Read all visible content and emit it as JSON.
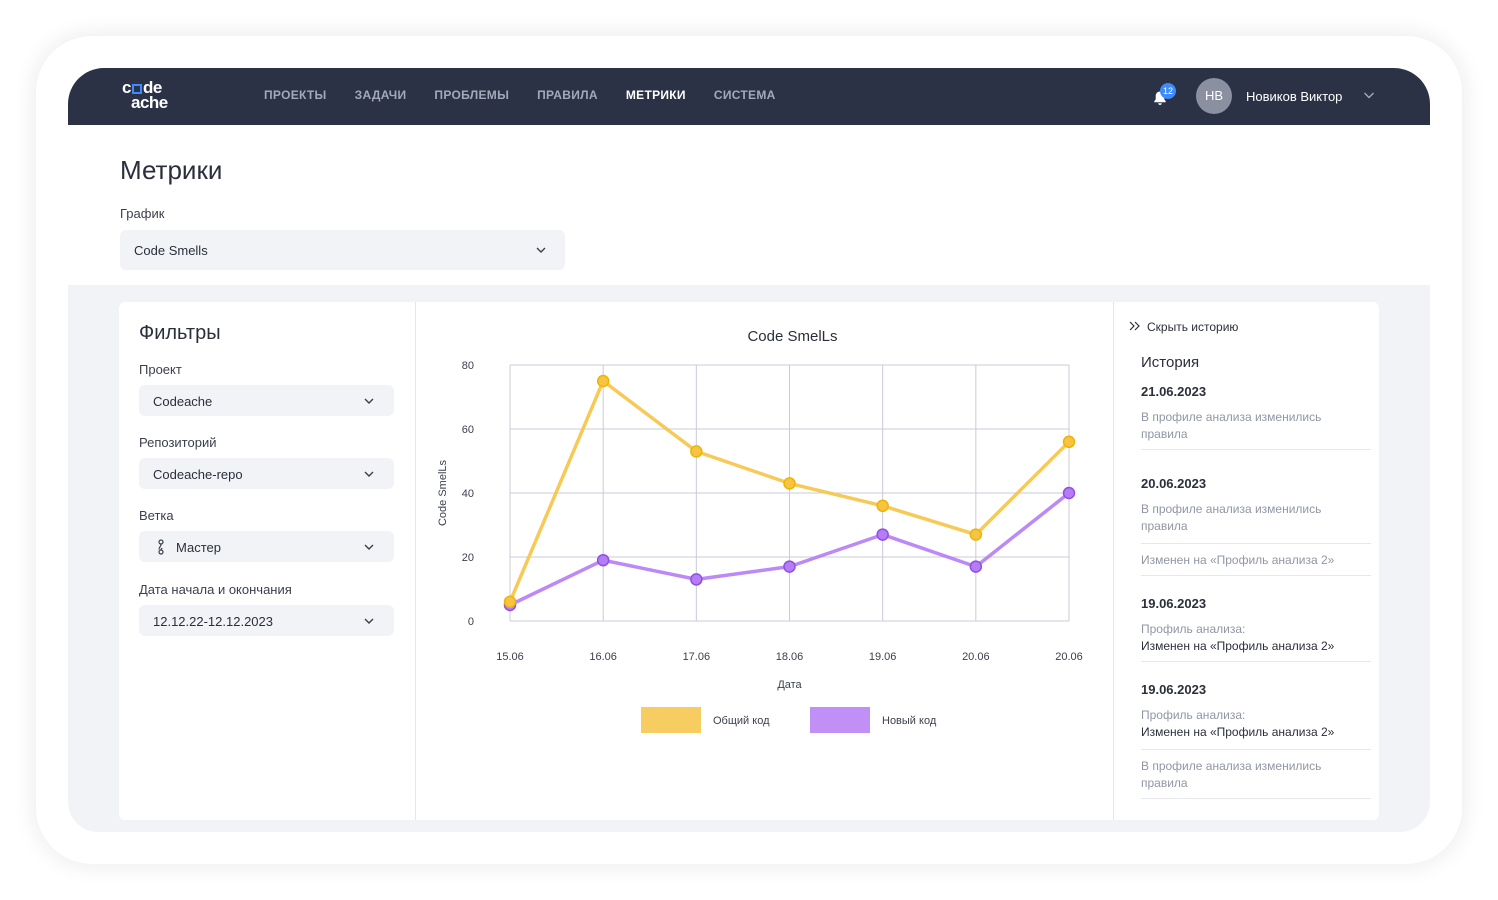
{
  "brand": {
    "logo_line1_a": "c",
    "logo_line1_b": "de",
    "logo_line2": "ache"
  },
  "nav": {
    "items": [
      {
        "label": "ПРОЕКТЫ",
        "active": false
      },
      {
        "label": "ЗАДАЧИ",
        "active": false
      },
      {
        "label": "ПРОБЛЕМЫ",
        "active": false
      },
      {
        "label": "ПРАВИЛА",
        "active": false
      },
      {
        "label": "МЕТРИКИ",
        "active": true
      },
      {
        "label": "СИСТЕМА",
        "active": false
      }
    ]
  },
  "user": {
    "notifications": "12",
    "initials": "НВ",
    "name": "Новиков Виктор"
  },
  "page": {
    "title": "Метрики",
    "graph_label": "График",
    "graph_value": "Code Smells"
  },
  "filters": {
    "title": "Фильтры",
    "project_label": "Проект",
    "project_value": "Codeache",
    "repo_label": "Репозиторий",
    "repo_value": "Codeache-repo",
    "branch_label": "Ветка",
    "branch_value": "Мастер",
    "dates_label": "Дата начала и  окончания",
    "dates_value": "12.12.22-12.12.2023"
  },
  "history": {
    "toggle_label": "Скрыть историю",
    "title": "История",
    "entries": [
      {
        "date": "21.06.2023",
        "lines": [
          "В профиле анализа изменились правила"
        ]
      },
      {
        "date": "20.06.2023",
        "lines": [
          "В профиле анализа изменились правила"
        ],
        "sub": "Изменен на «Профиль анализа 2»"
      },
      {
        "date": "19.06.2023",
        "label": "Профиль анализа:",
        "value": "Изменен на «Профиль анализа 2»"
      },
      {
        "date": "19.06.2023",
        "label": "Профиль анализа:",
        "value": "Изменен на «Профиль анализа 2»",
        "sub": "В профиле анализа изменились правила"
      }
    ]
  },
  "colors": {
    "accent": "#3d8bff",
    "topbar": "#2b3246",
    "series_total": "#f6c445",
    "series_new": "#b57cf5"
  },
  "chart_data": {
    "type": "line",
    "title": "Code SmelLs",
    "xlabel": "Дата",
    "ylabel": "Code SmelLs",
    "categories": [
      "15.06",
      "16.06",
      "17.06",
      "18.06",
      "19.06",
      "20.06",
      "20.06"
    ],
    "ylim": [
      0,
      80
    ],
    "yticks": [
      0,
      20,
      40,
      60,
      80
    ],
    "grid": true,
    "legend": "bottom",
    "series": [
      {
        "name": "Общий код",
        "color": "#f6c445",
        "values": [
          6,
          75,
          53,
          43,
          36,
          27,
          56
        ]
      },
      {
        "name": "Новый код",
        "color": "#b57cf5",
        "values": [
          5,
          19,
          13,
          17,
          27,
          17,
          40
        ]
      }
    ]
  }
}
